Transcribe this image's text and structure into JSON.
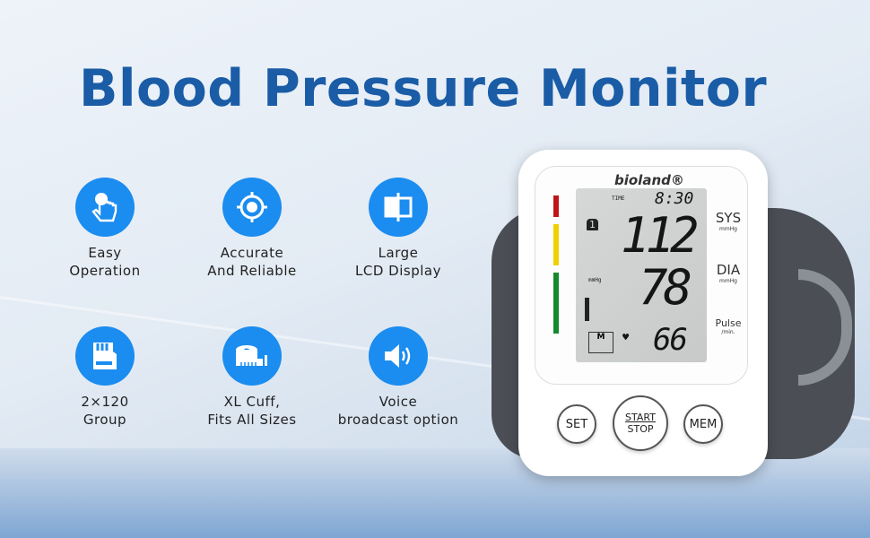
{
  "title": "Blood Pressure Monitor",
  "features": [
    {
      "icon": "hand-tap-icon",
      "line1": "Easy",
      "line2": "Operation"
    },
    {
      "icon": "target-icon",
      "line1": "Accurate",
      "line2": "And Reliable"
    },
    {
      "icon": "display-icon",
      "line1": "Large",
      "line2": "LCD Display"
    },
    {
      "icon": "memory-card-icon",
      "line1": "2×120",
      "line2": "Group"
    },
    {
      "icon": "tape-measure-icon",
      "line1": "XL Cuff,",
      "line2": "Fits All Sizes"
    },
    {
      "icon": "speaker-icon",
      "line1": "Voice",
      "line2": "broadcast option"
    }
  ],
  "device": {
    "brand": "bioland®",
    "time_label": "TIME",
    "time": "8:30",
    "user": "1",
    "sys": "112",
    "dia": "78",
    "pulse": "66",
    "mmhg_small": "mmHg",
    "memory": "M",
    "sys_label": "SYS",
    "sys_unit": "mmHg",
    "dia_label": "DIA",
    "dia_unit": "mmHg",
    "pulse_label": "Pulse",
    "pulse_unit": "/min.",
    "buttons": {
      "set": "SET",
      "start": "START",
      "stop": "STOP",
      "mem": "MEM"
    },
    "indicator_colors": [
      "#c0141b",
      "#f0d000",
      "#138a2e"
    ]
  },
  "colors": {
    "title": "#1a5ca6",
    "icon_bg": "#1b8cf0"
  }
}
